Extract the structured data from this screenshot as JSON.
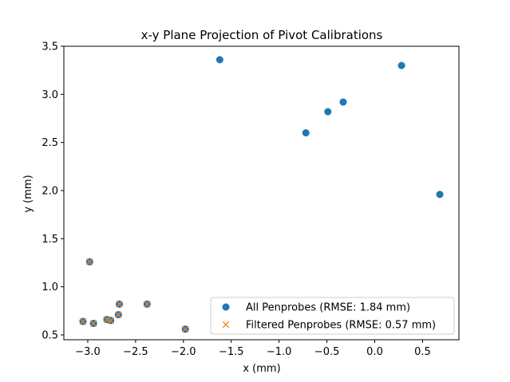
{
  "chart_data": {
    "type": "scatter",
    "title": "x-y Plane Projection of Pivot Calibrations",
    "xlabel": "x (mm)",
    "ylabel": "y (mm)",
    "xlim": [
      -3.25,
      0.88
    ],
    "ylim": [
      0.45,
      3.5
    ],
    "xticks": [
      -3.0,
      -2.5,
      -2.0,
      -1.5,
      -1.0,
      -0.5,
      0.0,
      0.5
    ],
    "xtick_labels": [
      "−3.0",
      "−2.5",
      "−2.0",
      "−1.5",
      "−1.0",
      "−0.5",
      "0.0",
      "0.5"
    ],
    "yticks": [
      0.5,
      1.0,
      1.5,
      2.0,
      2.5,
      3.0,
      3.5
    ],
    "ytick_labels": [
      "0.5",
      "1.0",
      "1.5",
      "2.0",
      "2.5",
      "3.0",
      "3.5"
    ],
    "grid": false,
    "legend_position": "bottom-right",
    "series": [
      {
        "name": "All Penprobes (RMSE: 1.84 mm)",
        "marker": "circle",
        "color": "#1f77b4",
        "points": [
          [
            -1.62,
            3.36
          ],
          [
            0.28,
            3.3
          ],
          [
            -0.33,
            2.92
          ],
          [
            -0.49,
            2.82
          ],
          [
            -0.72,
            2.6
          ],
          [
            0.68,
            1.96
          ],
          [
            -2.98,
            1.26
          ],
          [
            -3.05,
            0.64
          ],
          [
            -2.94,
            0.62
          ],
          [
            -2.8,
            0.66
          ],
          [
            -2.76,
            0.65
          ],
          [
            -2.68,
            0.71
          ],
          [
            -2.67,
            0.82
          ],
          [
            -2.38,
            0.82
          ],
          [
            -1.98,
            0.56
          ]
        ]
      },
      {
        "name": "Filtered Penprobes (RMSE: 0.57 mm)",
        "marker": "x",
        "color": "#ff7f0e",
        "points": [
          [
            -2.98,
            1.26
          ],
          [
            -3.05,
            0.64
          ],
          [
            -2.94,
            0.62
          ],
          [
            -2.8,
            0.66
          ],
          [
            -2.76,
            0.65
          ],
          [
            -2.68,
            0.71
          ],
          [
            -2.67,
            0.82
          ],
          [
            -2.38,
            0.82
          ],
          [
            -1.98,
            0.56
          ]
        ]
      }
    ]
  }
}
